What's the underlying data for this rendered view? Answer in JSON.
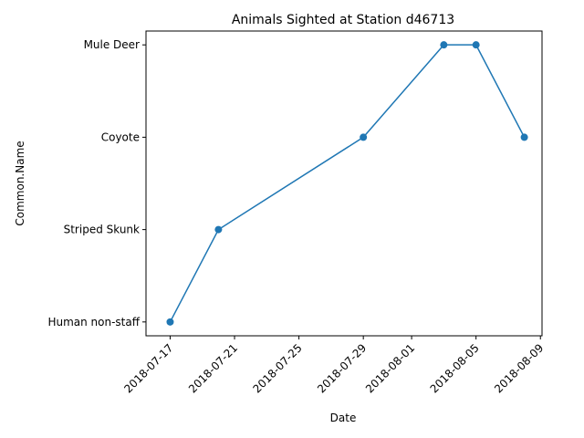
{
  "chart_data": {
    "type": "line",
    "title": "Animals Sighted at Station d46713",
    "xlabel": "Date",
    "ylabel": "Common.Name",
    "x_ticks": [
      "2018-07-17",
      "2018-07-21",
      "2018-07-25",
      "2018-07-29",
      "2018-08-01",
      "2018-08-05",
      "2018-08-09"
    ],
    "y_categories": [
      "Human non-staff",
      "Striped Skunk",
      "Coyote",
      "Mule Deer"
    ],
    "xlim": [
      "2018-07-16",
      "2018-08-09"
    ],
    "series": [
      {
        "points": [
          {
            "x": "2018-07-17",
            "y": "Human non-staff"
          },
          {
            "x": "2018-07-20",
            "y": "Striped Skunk"
          },
          {
            "x": "2018-07-29",
            "y": "Coyote"
          },
          {
            "x": "2018-08-03",
            "y": "Mule Deer"
          },
          {
            "x": "2018-08-05",
            "y": "Mule Deer"
          },
          {
            "x": "2018-08-08",
            "y": "Coyote"
          }
        ]
      }
    ],
    "grid": false,
    "color": "#1f77b4",
    "marker": "circle"
  }
}
